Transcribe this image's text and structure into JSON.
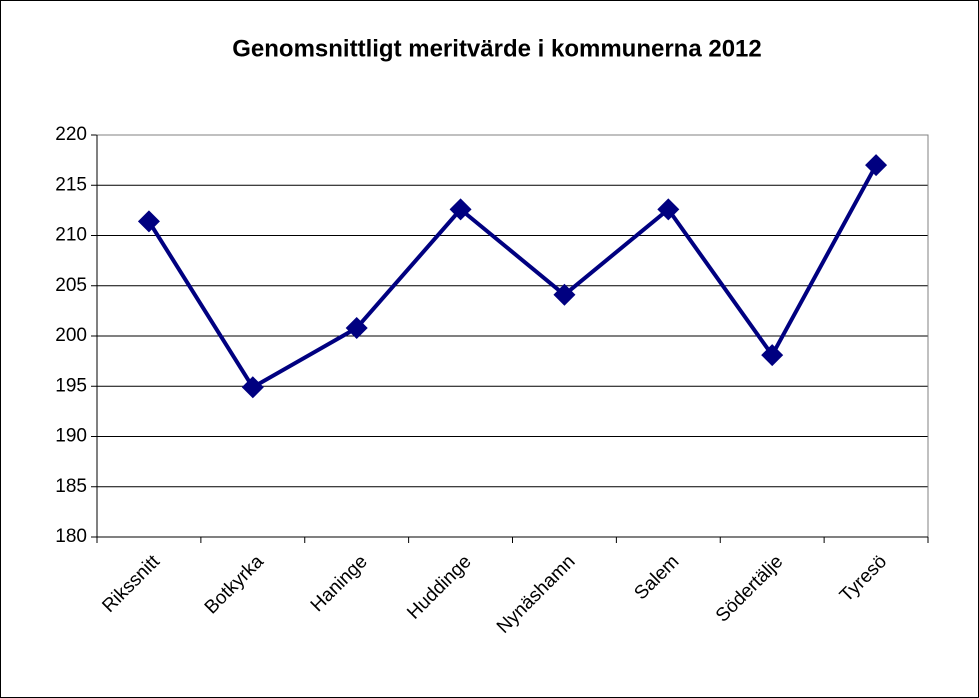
{
  "chart_data": {
    "type": "line",
    "title": "Genomsnittligt meritvärde i kommunerna 2012",
    "categories": [
      "Rikssnitt",
      "Botkyrka",
      "Haninge",
      "Huddinge",
      "Nynäshamn",
      "Salem",
      "Södertälje",
      "Tyresö"
    ],
    "series": [
      {
        "name": "Meritvärde",
        "color": "#000080",
        "values": [
          211.4,
          194.9,
          200.8,
          212.6,
          204.1,
          212.6,
          198.1,
          217.0
        ]
      }
    ],
    "ylim": [
      180,
      220
    ],
    "yticks": [
      180,
      185,
      190,
      195,
      200,
      205,
      210,
      215,
      220
    ],
    "grid": true,
    "legend": false
  }
}
